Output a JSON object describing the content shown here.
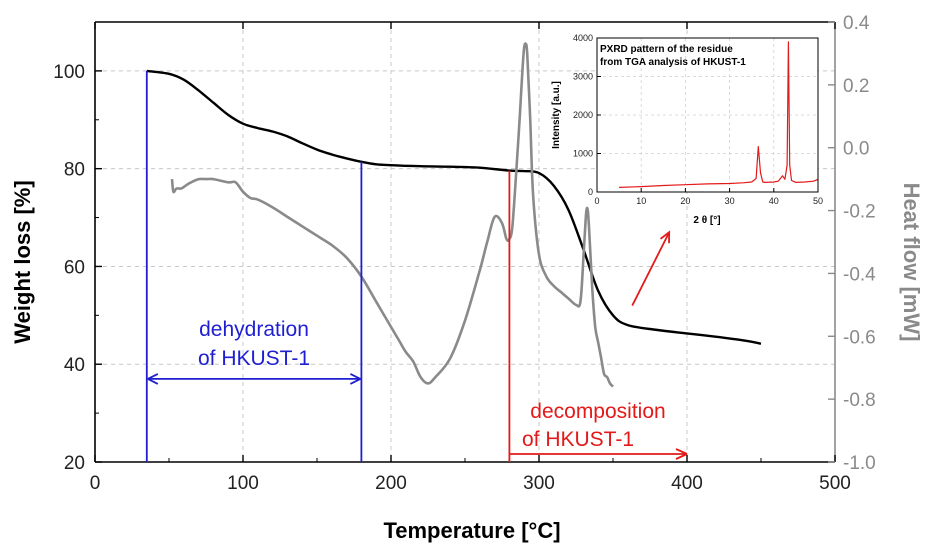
{
  "chart_data": {
    "type": "line",
    "xlabel": "Temperature [°C]",
    "ylabel_left": "Weight loss [%]",
    "ylabel_right": "Heat flow [mW]",
    "xlim": [
      0,
      500
    ],
    "ylim_left": [
      20,
      110
    ],
    "ylim_right": [
      -1.0,
      0.4
    ],
    "x_ticks": [
      "0",
      "100",
      "200",
      "300",
      "400",
      "500"
    ],
    "y_left_ticks": [
      "20",
      "40",
      "60",
      "80",
      "100"
    ],
    "y_right_ticks": [
      "0.4",
      "0.2",
      "0.0",
      "-0.2",
      "-0.4",
      "-0.6",
      "-0.8",
      "-1.0"
    ],
    "grid": true,
    "colors": {
      "weight": "#000000",
      "heat": "#8a8a8a",
      "blue": "#1f1fd1",
      "red": "#e31a1a"
    },
    "series": [
      {
        "axis": "left",
        "x": [
          35,
          50,
          60,
          70,
          80,
          90,
          100,
          110,
          120,
          130,
          140,
          150,
          160,
          170,
          180,
          190,
          200,
          220,
          240,
          260,
          280,
          290,
          300,
          310,
          320,
          330,
          340,
          350,
          360,
          380,
          400,
          420,
          440,
          450
        ],
        "y": [
          100,
          99.4,
          98.2,
          96,
          93.5,
          91,
          89.2,
          88.3,
          87.6,
          86.6,
          85.2,
          83.9,
          82.9,
          82.1,
          81.4,
          80.9,
          80.7,
          80.5,
          80.4,
          80.2,
          79.6,
          79.5,
          79.1,
          76.5,
          71.5,
          63.5,
          55,
          50,
          48,
          47,
          46.3,
          45.6,
          44.8,
          44.2
        ]
      },
      {
        "axis": "right",
        "x": [
          52,
          53,
          55,
          58,
          60,
          63,
          65,
          70,
          75,
          80,
          90,
          95,
          100,
          105,
          110,
          120,
          130,
          140,
          150,
          160,
          170,
          180,
          190,
          200,
          205,
          210,
          215,
          220,
          225,
          230,
          240,
          250,
          260,
          265,
          270,
          275,
          278,
          280,
          282,
          285,
          287,
          289,
          290,
          291,
          292,
          294,
          296,
          300,
          305,
          310,
          315,
          320,
          325,
          328,
          330,
          331,
          332,
          333,
          334,
          336,
          338,
          340,
          342,
          344,
          346,
          348,
          350
        ],
        "y": [
          -0.1,
          -0.14,
          -0.13,
          -0.13,
          -0.125,
          -0.115,
          -0.11,
          -0.1,
          -0.1,
          -0.1,
          -0.11,
          -0.11,
          -0.14,
          -0.16,
          -0.165,
          -0.19,
          -0.22,
          -0.25,
          -0.28,
          -0.31,
          -0.35,
          -0.41,
          -0.49,
          -0.57,
          -0.61,
          -0.65,
          -0.68,
          -0.73,
          -0.75,
          -0.73,
          -0.67,
          -0.55,
          -0.39,
          -0.3,
          -0.22,
          -0.24,
          -0.29,
          -0.29,
          -0.25,
          -0.05,
          0.1,
          0.26,
          0.32,
          0.33,
          0.3,
          0.1,
          -0.15,
          -0.34,
          -0.41,
          -0.44,
          -0.46,
          -0.48,
          -0.5,
          -0.49,
          -0.35,
          -0.27,
          -0.2,
          -0.2,
          -0.27,
          -0.45,
          -0.57,
          -0.62,
          -0.67,
          -0.72,
          -0.73,
          -0.75,
          -0.76
        ]
      }
    ],
    "annotations": {
      "dehydration_line1": "dehydration",
      "dehydration_line2": "of HKUST-1",
      "decomposition_line1": "decomposition",
      "decomposition_line2": "of HKUST-1",
      "dehydration_range": [
        35,
        180
      ],
      "decomposition_start": 280,
      "decomposition_arrow_end": 400
    },
    "inset": {
      "type": "line",
      "title_line1": "PXRD pattern of the residue",
      "title_line2": "from TGA analysis of HKUST-1",
      "xlabel": "2 θ [°]",
      "ylabel": "Intensity [a.u.]",
      "xlim": [
        0,
        50
      ],
      "ylim": [
        0,
        4000
      ],
      "x_ticks": [
        "0",
        "10",
        "20",
        "30",
        "40",
        "50"
      ],
      "y_ticks": [
        "0",
        "1000",
        "2000",
        "3000",
        "4000"
      ],
      "x": [
        5,
        10,
        15,
        20,
        25,
        30,
        33,
        35,
        36,
        36.5,
        37,
        37.5,
        38,
        40,
        41,
        42,
        42.5,
        43,
        43.3,
        43.6,
        44,
        45,
        47,
        49,
        50
      ],
      "y": [
        120,
        140,
        170,
        190,
        210,
        220,
        240,
        260,
        350,
        1180,
        500,
        260,
        250,
        260,
        280,
        420,
        330,
        700,
        3900,
        700,
        300,
        250,
        260,
        280,
        330
      ]
    }
  }
}
